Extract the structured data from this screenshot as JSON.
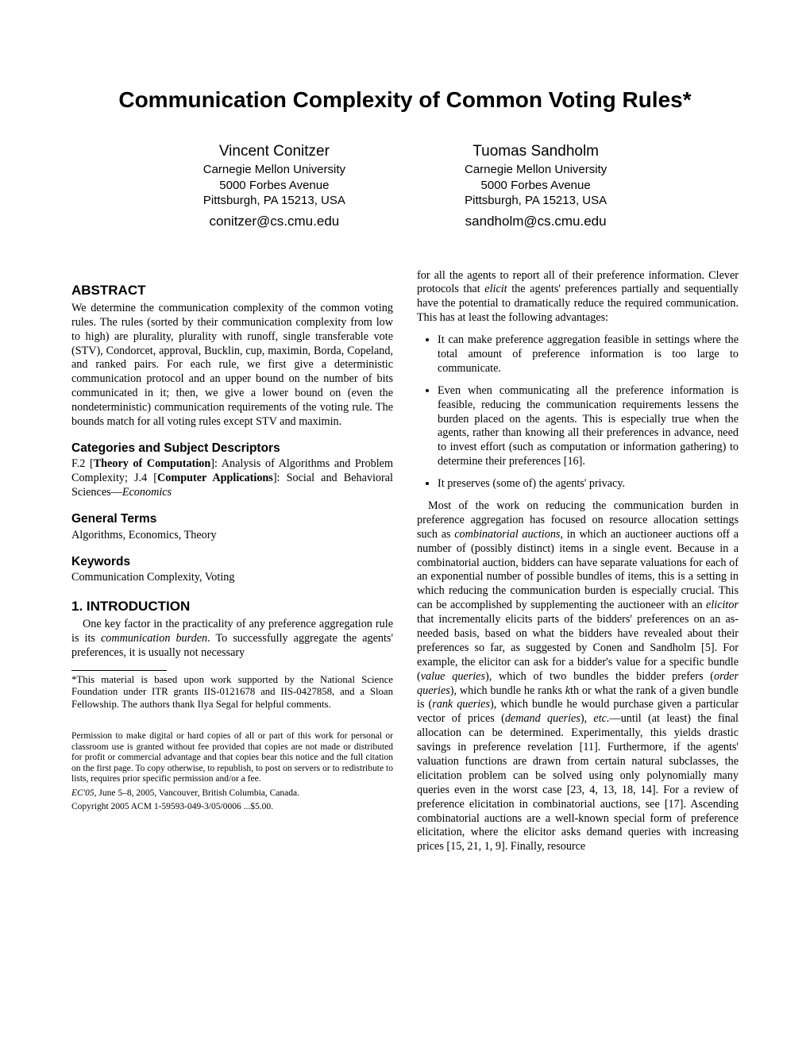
{
  "title": "Communication Complexity of Common Voting Rules",
  "title_footnote_mark": "*",
  "authors": [
    {
      "name": "Vincent Conitzer",
      "affiliation": "Carnegie Mellon University",
      "address1": "5000 Forbes Avenue",
      "address2": "Pittsburgh, PA 15213, USA",
      "email": "conitzer@cs.cmu.edu"
    },
    {
      "name": "Tuomas Sandholm",
      "affiliation": "Carnegie Mellon University",
      "address1": "5000 Forbes Avenue",
      "address2": "Pittsburgh, PA 15213, USA",
      "email": "sandholm@cs.cmu.edu"
    }
  ],
  "abstract_heading": "ABSTRACT",
  "abstract_text": "We determine the communication complexity of the common voting rules. The rules (sorted by their communication complexity from low to high) are plurality, plurality with runoff, single transferable vote (STV), Condorcet, approval, Bucklin, cup, maximin, Borda, Copeland, and ranked pairs. For each rule, we first give a deterministic communication protocol and an upper bound on the number of bits communicated in it; then, we give a lower bound on (even the nondeterministic) communication requirements of the voting rule. The bounds match for all voting rules except STV and maximin.",
  "categories_heading": "Categories and Subject Descriptors",
  "categories_text_parts": {
    "p1": "F.2 [",
    "p2": "Theory of Computation",
    "p3": "]: Analysis of Algorithms and Problem Complexity; J.4 [",
    "p4": "Computer Applications",
    "p5": "]: Social and Behavioral Sciences—",
    "p6": "Economics"
  },
  "general_terms_heading": "General Terms",
  "general_terms_text": "Algorithms, Economics, Theory",
  "keywords_heading": "Keywords",
  "keywords_text": "Communication Complexity, Voting",
  "intro_heading": "1.   INTRODUCTION",
  "intro_para1_parts": {
    "p1": "One key factor in the practicality of any preference aggregation rule is its ",
    "p2": "communication burden",
    "p3": ". To successfully aggregate the agents' preferences, it is usually not necessary"
  },
  "footnote_text": "*This material is based upon work supported by the National Science Foundation under ITR grants IIS-0121678 and IIS-0427858, and a Sloan Fellowship. The authors thank Ilya Segal for helpful comments.",
  "permission_text": "Permission to make digital or hard copies of all or part of this work for personal or classroom use is granted without fee provided that copies are not made or distributed for profit or commercial advantage and that copies bear this notice and the full citation on the first page. To copy otherwise, to republish, to post on servers or to redistribute to lists, requires prior specific permission and/or a fee.",
  "conference_line_parts": {
    "p1": "EC'05, ",
    "p2": "June 5–8, 2005, Vancouver, British Columbia, Canada."
  },
  "copyright_line": "Copyright 2005 ACM 1-59593-049-3/05/0006 ...$5.00.",
  "col2_para1_parts": {
    "p1": "for all the agents to report all of their preference information. Clever protocols that ",
    "p2": "elicit",
    "p3": " the agents' preferences partially and sequentially have the potential to dramatically reduce the required communication. This has at least the following advantages:"
  },
  "bullets": [
    "It can make preference aggregation feasible in settings where the total amount of preference information is too large to communicate.",
    "Even when communicating all the preference information is feasible, reducing the communication requirements lessens the burden placed on the agents. This is especially true when the agents, rather than knowing all their preferences in advance, need to invest effort (such as computation or information gathering) to determine their preferences [16].",
    "It preserves (some of) the agents' privacy."
  ],
  "col2_para2_parts": {
    "p1": "Most of the work on reducing the communication burden in preference aggregation has focused on resource allocation settings such as ",
    "p2": "combinatorial auctions",
    "p3": ", in which an auctioneer auctions off a number of (possibly distinct) items in a single event. Because in a combinatorial auction, bidders can have separate valuations for each of an exponential number of possible bundles of items, this is a setting in which reducing the communication burden is especially crucial. This can be accomplished by supplementing the auctioneer with an ",
    "p4": "elicitor",
    "p5": " that incrementally elicits parts of the bidders' preferences on an as-needed basis, based on what the bidders have revealed about their preferences so far, as suggested by Conen and Sandholm [5]. For example, the elicitor can ask for a bidder's value for a specific bundle (",
    "p6": "value queries",
    "p7": "), which of two bundles the bidder prefers (",
    "p8": "order queries",
    "p9": "), which bundle he ranks ",
    "p10": "k",
    "p11": "th or what the rank of a given bundle is (",
    "p12": "rank queries",
    "p13": "), which bundle he would purchase given a particular vector of prices (",
    "p14": "demand queries",
    "p15": "), ",
    "p16": "etc.",
    "p17": "—until (at least) the final allocation can be determined. Experimentally, this yields drastic savings in preference revelation [11]. Furthermore, if the agents' valuation functions are drawn from certain natural subclasses, the elicitation problem can be solved using only polynomially many queries even in the worst case [23, 4, 13, 18, 14]. For a review of preference elicitation in combinatorial auctions, see [17]. Ascending combinatorial auctions are a well-known special form of preference elicitation, where the elicitor asks demand queries with increasing prices [15, 21, 1, 9]. Finally, resource"
  }
}
